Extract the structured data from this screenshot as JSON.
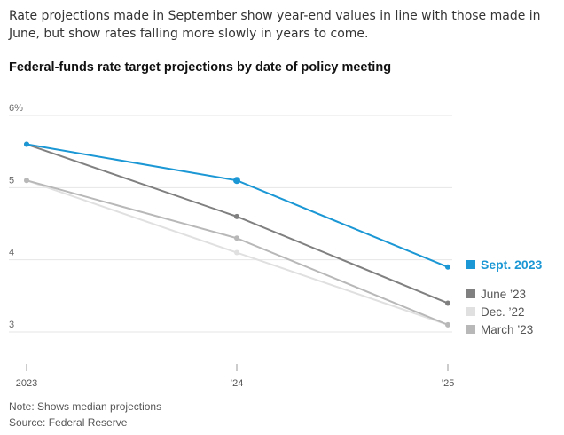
{
  "header": {
    "subtitle": "Rate projections made in September show year-end values in line with those made in June, but show rates falling more slowly in years to come.",
    "title": "Federal-funds rate target projections by date of policy meeting"
  },
  "footer": {
    "note": "Note: Shows median projections",
    "source": "Source: Federal Reserve"
  },
  "chart_data": {
    "type": "line",
    "title": "Federal-funds rate target projections by date of policy meeting",
    "x": [
      "2023",
      "’24",
      "’25"
    ],
    "y_ticks": [
      "6%",
      "5",
      "4",
      "3"
    ],
    "ylim": [
      3,
      6
    ],
    "grid": true,
    "legend_placement": "right",
    "series": [
      {
        "name": "Dec. ’22",
        "color": "#e0e0e0",
        "values": [
          5.1,
          4.1,
          3.1
        ]
      },
      {
        "name": "March ’23",
        "color": "#b8b8b8",
        "values": [
          5.1,
          4.3,
          3.1
        ]
      },
      {
        "name": "June ’23",
        "color": "#808080",
        "values": [
          5.6,
          4.6,
          3.4
        ]
      },
      {
        "name": "Sept. 2023",
        "color": "#1a97d4",
        "values": [
          5.6,
          5.1,
          3.9
        ]
      }
    ]
  }
}
